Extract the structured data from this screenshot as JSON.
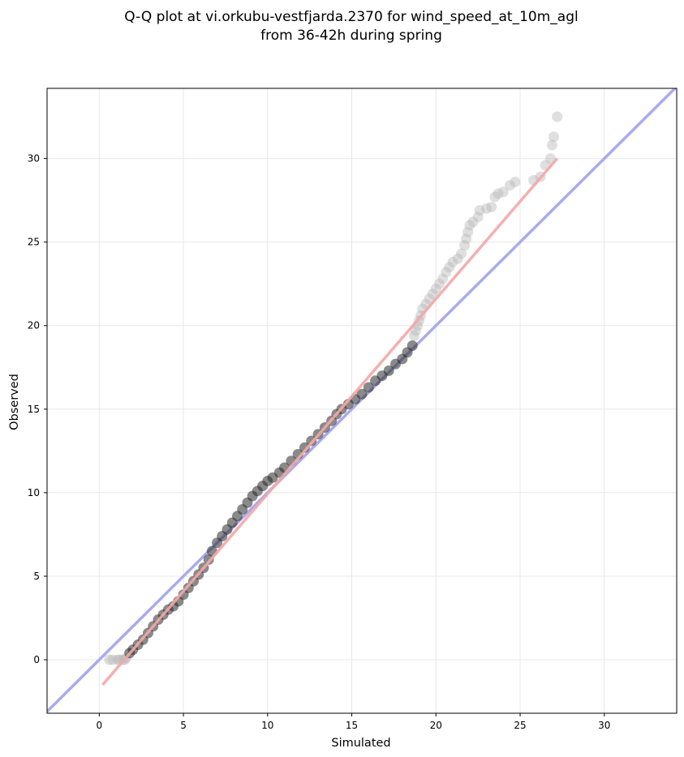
{
  "chart_data": {
    "type": "scatter",
    "title_lines": [
      "Q-Q plot at vi.orkubu-vestfjarda.2370 for wind_speed_at_10m_agl",
      "from 36-42h during spring"
    ],
    "xlabel": "Simulated",
    "ylabel": "Observed",
    "xlim": [
      -3.1,
      34.3
    ],
    "ylim": [
      -3.2,
      34.2
    ],
    "xticks": [
      0,
      5,
      10,
      15,
      20,
      25,
      30
    ],
    "yticks": [
      0,
      5,
      10,
      15,
      20,
      25,
      30
    ],
    "grid": true,
    "reference_line": {
      "color": "#aaaaf0",
      "x": [
        -3.1,
        34.3
      ],
      "y": [
        -3.1,
        34.3
      ]
    },
    "fit_line": {
      "color": "#f4a6a6",
      "x": [
        0.2,
        27.2
      ],
      "y": [
        -1.5,
        30.0
      ]
    },
    "series": [
      {
        "marker_color": "#b8b8b8",
        "points": [
          [
            0.6,
            0
          ],
          [
            0.8,
            0
          ],
          [
            1.1,
            0
          ],
          [
            1.2,
            0
          ],
          [
            1.4,
            0
          ],
          [
            1.5,
            0
          ],
          [
            1.6,
            0.1
          ],
          [
            18.7,
            19.4
          ],
          [
            18.8,
            19.7
          ],
          [
            18.9,
            20.0
          ],
          [
            19.0,
            20.3
          ],
          [
            19.1,
            20.6
          ],
          [
            19.2,
            21.0
          ],
          [
            19.4,
            21.3
          ],
          [
            19.6,
            21.6
          ],
          [
            19.8,
            21.9
          ],
          [
            20.0,
            22.2
          ],
          [
            20.2,
            22.5
          ],
          [
            20.4,
            22.8
          ],
          [
            20.6,
            23.2
          ],
          [
            20.8,
            23.5
          ],
          [
            21.0,
            23.8
          ],
          [
            21.3,
            24.0
          ],
          [
            21.5,
            24.3
          ],
          [
            21.7,
            24.8
          ],
          [
            21.8,
            25.2
          ],
          [
            21.9,
            25.6
          ],
          [
            22.0,
            26.0
          ],
          [
            22.2,
            26.2
          ],
          [
            22.5,
            26.5
          ],
          [
            22.6,
            26.9
          ],
          [
            23.0,
            27.0
          ],
          [
            23.3,
            27.1
          ],
          [
            23.5,
            27.7
          ],
          [
            23.7,
            27.9
          ],
          [
            24.0,
            28.0
          ],
          [
            24.4,
            28.4
          ],
          [
            24.7,
            28.6
          ],
          [
            25.8,
            28.7
          ],
          [
            26.2,
            28.9
          ],
          [
            26.5,
            29.6
          ],
          [
            26.8,
            30.0
          ],
          [
            26.9,
            30.8
          ],
          [
            27.0,
            31.3
          ],
          [
            27.2,
            32.5
          ]
        ]
      },
      {
        "marker_color": "#2a2a2a",
        "points": [
          [
            1.8,
            0.4
          ],
          [
            2.0,
            0.6
          ],
          [
            2.3,
            0.9
          ],
          [
            2.6,
            1.2
          ],
          [
            2.9,
            1.6
          ],
          [
            3.2,
            2.0
          ],
          [
            3.5,
            2.4
          ],
          [
            3.8,
            2.7
          ],
          [
            4.1,
            3.0
          ],
          [
            4.4,
            3.2
          ],
          [
            4.7,
            3.5
          ],
          [
            5.0,
            3.9
          ],
          [
            5.3,
            4.3
          ],
          [
            5.6,
            4.7
          ],
          [
            5.9,
            5.1
          ],
          [
            6.2,
            5.5
          ],
          [
            6.5,
            6.0
          ],
          [
            6.7,
            6.5
          ],
          [
            7.0,
            7.0
          ],
          [
            7.3,
            7.4
          ],
          [
            7.6,
            7.8
          ],
          [
            7.9,
            8.2
          ],
          [
            8.2,
            8.6
          ],
          [
            8.5,
            9.0
          ],
          [
            8.8,
            9.4
          ],
          [
            9.1,
            9.8
          ],
          [
            9.4,
            10.1
          ],
          [
            9.7,
            10.4
          ],
          [
            10.0,
            10.7
          ],
          [
            10.3,
            10.9
          ],
          [
            10.7,
            11.2
          ],
          [
            11.0,
            11.5
          ],
          [
            11.4,
            11.9
          ],
          [
            11.8,
            12.3
          ],
          [
            12.2,
            12.7
          ],
          [
            12.6,
            13.1
          ],
          [
            13.0,
            13.5
          ],
          [
            13.4,
            13.9
          ],
          [
            13.8,
            14.3
          ],
          [
            14.1,
            14.7
          ],
          [
            14.4,
            15.0
          ],
          [
            14.8,
            15.3
          ],
          [
            15.2,
            15.6
          ],
          [
            15.6,
            15.9
          ],
          [
            16.0,
            16.3
          ],
          [
            16.4,
            16.7
          ],
          [
            16.8,
            17.0
          ],
          [
            17.2,
            17.3
          ],
          [
            17.6,
            17.7
          ],
          [
            18.0,
            18.0
          ],
          [
            18.3,
            18.4
          ],
          [
            18.6,
            18.8
          ]
        ]
      }
    ]
  }
}
